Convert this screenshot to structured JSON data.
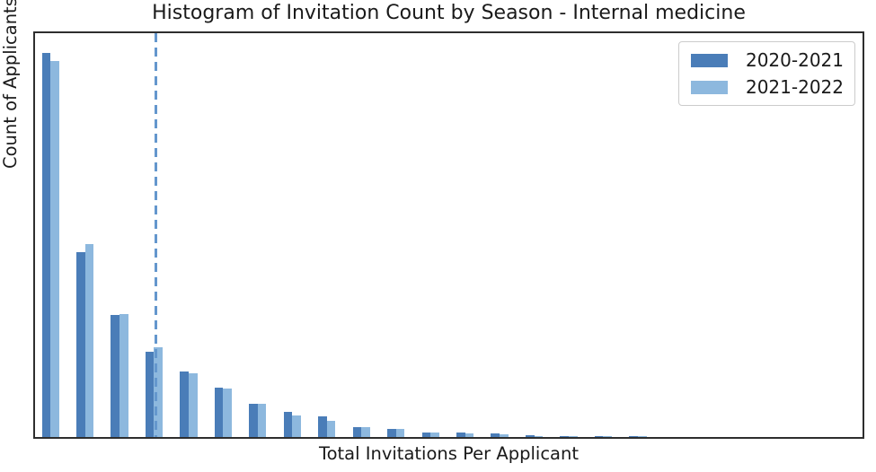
{
  "title": "Histogram of Invitation Count by Season - Internal medicine",
  "x_axis_label": "Total Invitations Per Applicant",
  "y_axis_label": "Count of Applicants",
  "colors": {
    "series_2020_2021": "#4a7db8",
    "series_2021_2022": "#8db8de",
    "vline": "#6497cd",
    "spine": "#2e2e2e",
    "text": "#1a1a1a",
    "legend_border": "#cccccc"
  },
  "chart_data": {
    "type": "bar",
    "subtype": "grouped-histogram",
    "title": "Histogram of Invitation Count by Season - Internal medicine",
    "xlabel": "Total Invitations Per Applicant",
    "ylabel": "Count of Applicants",
    "x_tick_labels": [],
    "y_tick_labels": [],
    "axis_note": "no tick marks or tick labels are shown on either axis; values below are relative bar heights (fraction of plot height, 0-1) estimated from pixels",
    "n_bins": 18,
    "bin_indices": [
      1,
      2,
      3,
      4,
      5,
      6,
      7,
      8,
      9,
      10,
      11,
      12,
      13,
      14,
      15,
      16,
      17,
      18
    ],
    "series": [
      {
        "name": "2020-2021",
        "color": "#4a7db8",
        "values": [
          0.95,
          0.458,
          0.303,
          0.211,
          0.163,
          0.123,
          0.083,
          0.063,
          0.05,
          0.025,
          0.019,
          0.012,
          0.01,
          0.008,
          0.004,
          0.002,
          0.002,
          0.001
        ]
      },
      {
        "name": "2021-2022",
        "color": "#8db8de",
        "values": [
          0.93,
          0.478,
          0.305,
          0.223,
          0.157,
          0.12,
          0.083,
          0.054,
          0.039,
          0.025,
          0.019,
          0.012,
          0.009,
          0.007,
          0.003,
          0.002,
          0.001,
          0.001
        ]
      }
    ],
    "vline": {
      "style": "dashed",
      "orientation": "vertical",
      "color": "#6497cd",
      "x_fraction_of_plot_width": 0.146
    },
    "legend_position": "upper right",
    "grid": false,
    "ylim_note": "y axis starts at 0; maximum unlabeled"
  },
  "legend": {
    "entries": [
      {
        "label": "2020-2021",
        "color": "#4a7db8"
      },
      {
        "label": "2021-2022",
        "color": "#8db8de"
      }
    ]
  }
}
